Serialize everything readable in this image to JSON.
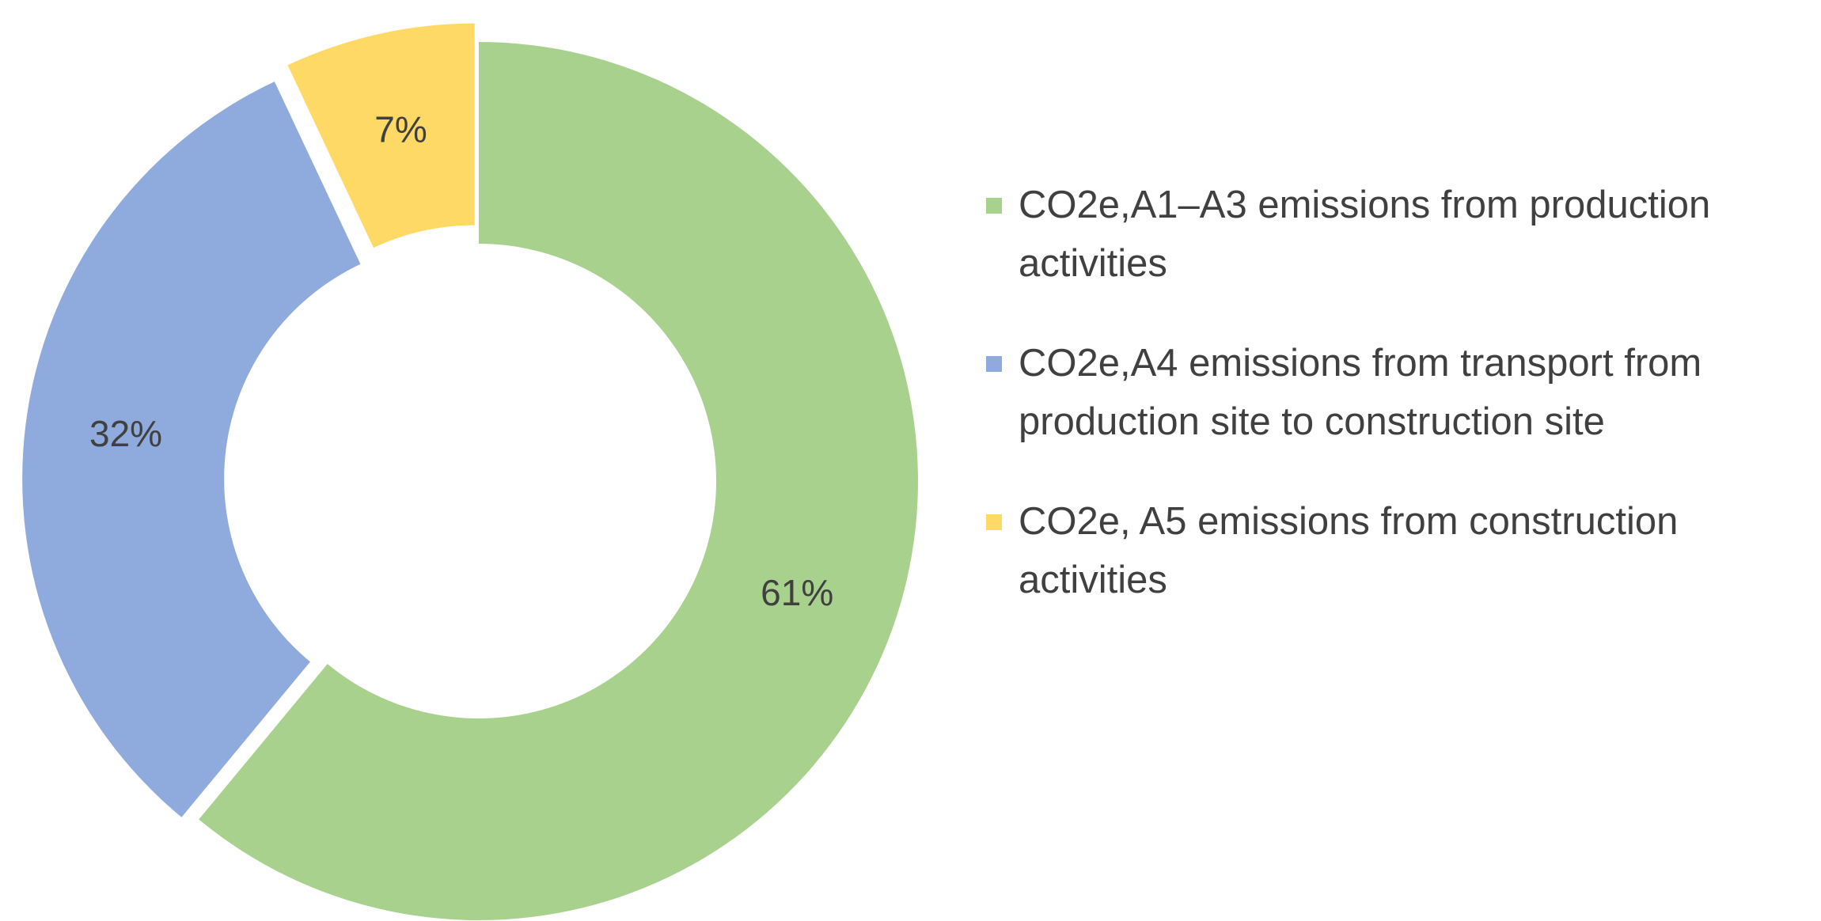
{
  "chart_data": {
    "type": "pie",
    "donut": true,
    "exploded": true,
    "title": "",
    "legend_position": "right",
    "series": [
      {
        "name": "CO2e,A1–A3 emissions from production activities",
        "value": 61,
        "label": "61%",
        "color": "#a9d18e"
      },
      {
        "name": "CO2e,A4 emissions from transport from production site to construction site",
        "value": 32,
        "label": "32%",
        "color": "#8faadc"
      },
      {
        "name": "CO2e, A5 emissions from construction activities",
        "value": 7,
        "label": "7%",
        "color": "#ffd966"
      }
    ]
  }
}
